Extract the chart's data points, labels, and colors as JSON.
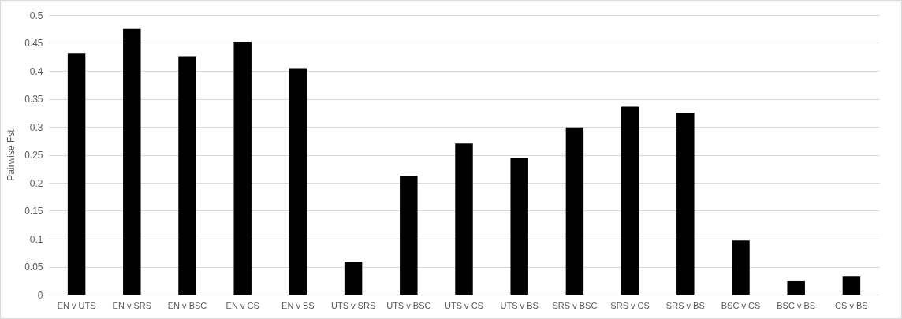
{
  "chart_data": {
    "type": "bar",
    "ylabel": "Pairwise Fst",
    "categories": [
      "EN v UTS",
      "EN v SRS",
      "EN v BSC",
      "EN v CS",
      "EN v BS",
      "UTS v SRS",
      "UTS v BSC",
      "UTS v CS",
      "UTS v BS",
      "SRS v BSC",
      "SRS v CS",
      "SRS v BS",
      "BSC v CS",
      "BSC v BS",
      "CS v BS"
    ],
    "values": [
      0.432,
      0.475,
      0.426,
      0.452,
      0.405,
      0.059,
      0.212,
      0.27,
      0.245,
      0.299,
      0.336,
      0.325,
      0.097,
      0.024,
      0.032
    ],
    "color": "#000000",
    "ylim": [
      0,
      0.5
    ],
    "yticks": [
      0,
      0.05,
      0.1,
      0.15,
      0.2,
      0.25,
      0.3,
      0.35,
      0.4,
      0.45,
      0.5
    ],
    "grid": "y"
  }
}
